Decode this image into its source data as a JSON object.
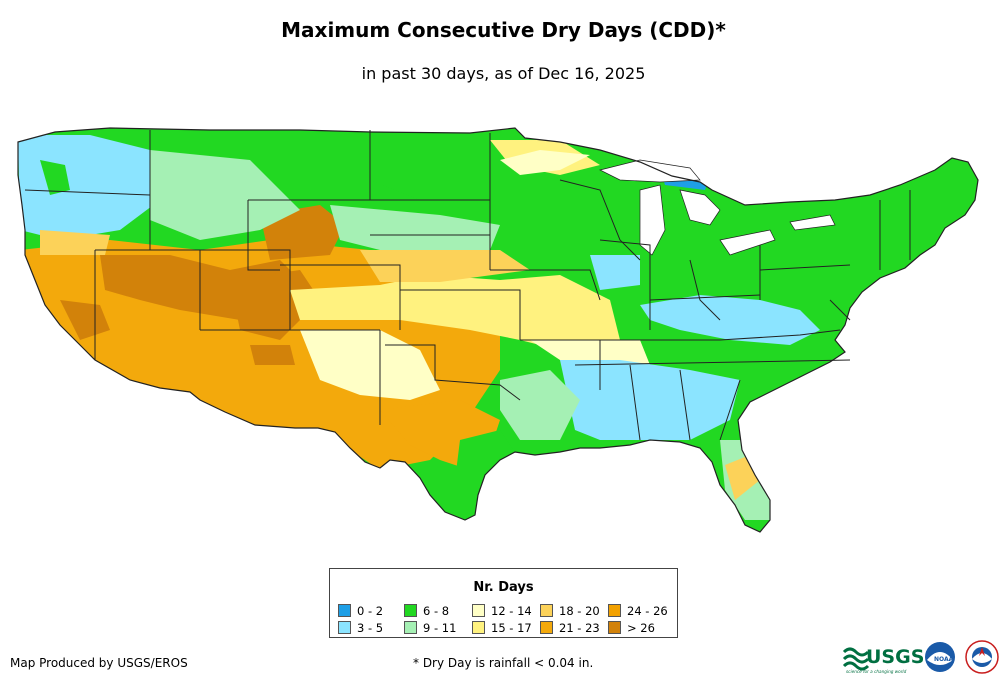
{
  "header": {
    "title": "Maximum Consecutive Dry Days (CDD)*",
    "subtitle": "in past 30 days, as of Dec 16, 2025"
  },
  "legend": {
    "title": "Nr. Days",
    "items": [
      {
        "label": "0 - 2",
        "color": "#1e9fe6"
      },
      {
        "label": "3 - 5",
        "color": "#8be4ff"
      },
      {
        "label": "6 - 8",
        "color": "#22d822"
      },
      {
        "label": "9 - 11",
        "color": "#a5f0b4"
      },
      {
        "label": "12 - 14",
        "color": "#ffffc6"
      },
      {
        "label": "15 - 17",
        "color": "#fff27f"
      },
      {
        "label": "18 - 20",
        "color": "#fcd259"
      },
      {
        "label": "21 - 23",
        "color": "#f3a90c"
      },
      {
        "label": "24 - 26",
        "color": "#f2a100"
      },
      {
        "label": "> 26",
        "color": "#d2820a"
      }
    ]
  },
  "footer": {
    "credit": "Map Produced by USGS/EROS",
    "footnote": "* Dry Day is rainfall < 0.04 in.",
    "usgs_logo_text": "USGS",
    "usgs_tagline": "science for a changing world",
    "noaa_logo_text": "NOAA"
  }
}
